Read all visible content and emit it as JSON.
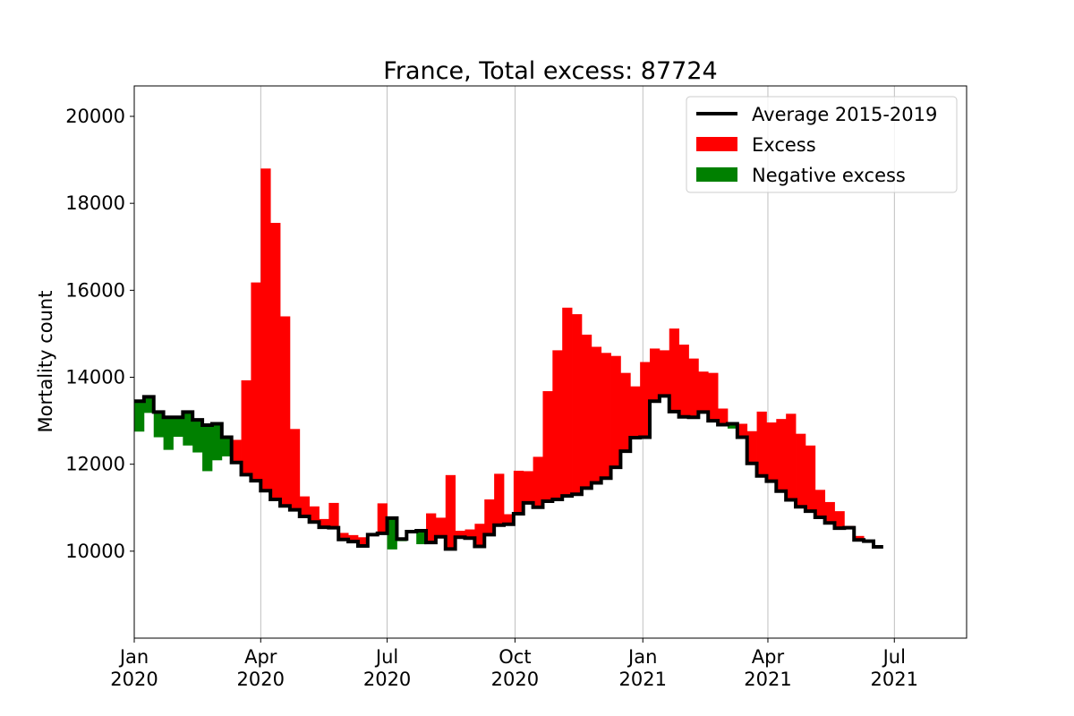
{
  "chart_data": {
    "type": "bar",
    "title": "France, Total excess: 87724",
    "xlabel": "",
    "ylabel": "Mortality count",
    "ylim": [
      8000,
      20700
    ],
    "yticks": [
      10000,
      12000,
      14000,
      16000,
      18000,
      20000
    ],
    "xticks": [
      {
        "date": "2020-01-01",
        "line1": "Jan",
        "line2": "2020"
      },
      {
        "date": "2020-04-01",
        "line1": "Apr",
        "line2": "2020"
      },
      {
        "date": "2020-07-01",
        "line1": "Jul",
        "line2": "2020"
      },
      {
        "date": "2020-10-01",
        "line1": "Oct",
        "line2": "2020"
      },
      {
        "date": "2021-01-01",
        "line1": "Jan",
        "line2": "2021"
      },
      {
        "date": "2021-04-01",
        "line1": "Apr",
        "line2": "2021"
      },
      {
        "date": "2021-07-01",
        "line1": "Jul",
        "line2": "2021"
      }
    ],
    "xlim": [
      "2020-01-01",
      "2021-08-22"
    ],
    "grid": "x",
    "legend_position": "top-right",
    "legend": [
      {
        "label": "Average 2015-2019",
        "kind": "line",
        "color": "#000000"
      },
      {
        "label": "Excess",
        "kind": "patch",
        "color": "#ff0000"
      },
      {
        "label": "Negative excess",
        "kind": "patch",
        "color": "#008000"
      }
    ],
    "colors": {
      "excess": "#ff0000",
      "negative": "#008000",
      "average": "#000000"
    },
    "week_start": "2020-01-01",
    "average": [
      13450,
      13550,
      13200,
      13080,
      13080,
      13200,
      13020,
      12900,
      12930,
      12620,
      12040,
      11760,
      11620,
      11390,
      11190,
      11040,
      10950,
      10800,
      10670,
      10550,
      10540,
      10270,
      10220,
      10120,
      10380,
      10410,
      10760,
      10280,
      10450,
      10470,
      10200,
      10330,
      10050,
      10320,
      10300,
      10110,
      10380,
      10600,
      10620,
      10860,
      11110,
      11010,
      11150,
      11190,
      11270,
      11310,
      11450,
      11570,
      11680,
      11930,
      12300,
      12610,
      12620,
      13450,
      13570,
      13210,
      13090,
      13080,
      13200,
      13000,
      12910,
      12930,
      12620,
      12020,
      11730,
      11610,
      11380,
      11180,
      11020,
      10920,
      10780,
      10650,
      10530,
      10540,
      10260,
      10230,
      10100
    ],
    "actual": [
      12750,
      13180,
      12620,
      12330,
      12630,
      12430,
      12270,
      11840,
      12090,
      12180,
      12560,
      13930,
      16180,
      18800,
      17550,
      15400,
      12810,
      11260,
      11030,
      10740,
      11110,
      10420,
      10370,
      10320,
      10370,
      11100,
      10040,
      10230,
      10430,
      10160,
      10870,
      10770,
      11750,
      10470,
      10500,
      10630,
      11190,
      11780,
      10850,
      11850,
      11840,
      12170,
      13680,
      14620,
      15600,
      15450,
      14980,
      14700,
      14560,
      14490,
      14100,
      13790,
      14350,
      14660,
      14620,
      15120,
      14750,
      14430,
      14130,
      14100,
      13280,
      12820,
      12930,
      12760,
      13210,
      12960,
      13040,
      13160,
      12700,
      12430,
      11410,
      11130,
      10920,
      10580,
      10350,
      null,
      null
    ]
  }
}
